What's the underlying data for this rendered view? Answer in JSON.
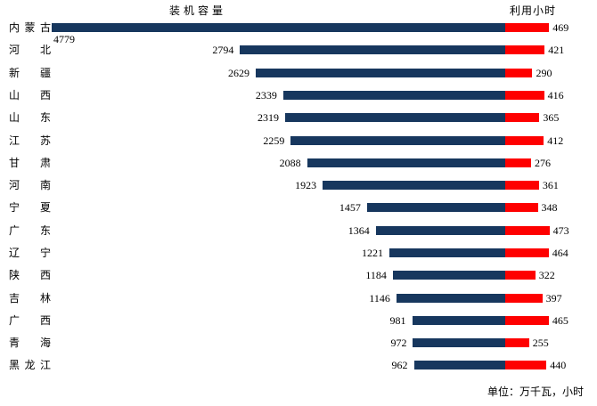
{
  "chart": {
    "left_title": "装机容量",
    "right_title": "利用小时",
    "unit_note": "单位：万千瓦，小时",
    "colors": {
      "capacity_bar": "#17375E",
      "hours_bar": "#FE0000",
      "text": "#000000",
      "background": "#FFFFFF"
    }
  },
  "chart_data": {
    "type": "bar",
    "orientation": "horizontal",
    "layout": "paired-opposed",
    "title": "",
    "categories": [
      "内蒙古",
      "河北",
      "新疆",
      "山西",
      "山东",
      "江苏",
      "甘肃",
      "河南",
      "宁夏",
      "广东",
      "辽宁",
      "陕西",
      "吉林",
      "广西",
      "青海",
      "黑龙江"
    ],
    "series": [
      {
        "name": "装机容量",
        "unit": "万千瓦",
        "direction": "left",
        "axis_max": 4800,
        "values": [
          4779,
          2794,
          2629,
          2339,
          2319,
          2259,
          2088,
          1923,
          1457,
          1364,
          1221,
          1184,
          1146,
          981,
          972,
          962
        ]
      },
      {
        "name": "利用小时",
        "unit": "小时",
        "direction": "right",
        "axis_max": 500,
        "values": [
          469,
          421,
          290,
          416,
          365,
          412,
          276,
          361,
          348,
          473,
          464,
          322,
          397,
          465,
          255,
          440
        ]
      }
    ],
    "grid": false,
    "legend_position": "column-headers",
    "value_labels": true
  }
}
